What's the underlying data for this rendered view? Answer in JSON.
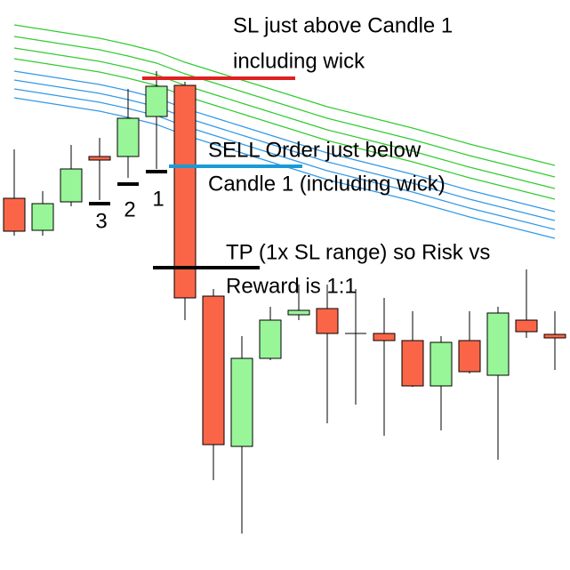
{
  "chart_data": {
    "type": "candlestick",
    "categories": [
      null,
      null,
      null,
      null,
      null,
      null,
      null,
      null,
      null,
      null,
      null,
      null,
      null,
      null,
      null,
      null,
      null,
      null,
      null,
      null
    ],
    "open": [
      418,
      382,
      414,
      465,
      465,
      510,
      545,
      308,
      139,
      238,
      287,
      294,
      266,
      266,
      258,
      207,
      258,
      219,
      281,
      265
    ],
    "high": [
      473,
      426,
      478,
      486,
      541,
      561,
      549,
      316,
      263,
      296,
      321,
      321,
      316,
      306,
      291,
      263,
      291,
      296,
      338,
      291
    ],
    "low": [
      376,
      376,
      409,
      416,
      441,
      451,
      281,
      101,
      41,
      236,
      281,
      165,
      186,
      151,
      206,
      157,
      221,
      124,
      261,
      225
    ],
    "close": [
      381,
      412,
      451,
      461,
      508,
      544,
      306,
      141,
      238,
      281,
      292,
      266,
      266,
      258,
      207,
      256,
      223,
      289,
      268,
      261
    ],
    "up_color": "#98f598",
    "down_color": "#fa6548",
    "ylim": [
      0,
      641
    ],
    "series": [
      {
        "color": "#33cc33",
        "values": [
          613,
          608,
          603,
          598,
          591,
          583,
          571,
          561,
          551,
          541,
          531,
          521,
          513,
          505,
          497,
          488,
          479,
          471,
          463,
          455
        ]
      },
      {
        "color": "#33cc33",
        "values": [
          600,
          595,
          590,
          585,
          578,
          570,
          558,
          548,
          538,
          528,
          518,
          508,
          500,
          492,
          484,
          475,
          466,
          458,
          450,
          442
        ]
      },
      {
        "color": "#33cc33",
        "values": [
          587,
          582,
          577,
          572,
          565,
          557,
          545,
          535,
          525,
          515,
          505,
          495,
          487,
          479,
          471,
          462,
          453,
          445,
          437,
          429
        ]
      },
      {
        "color": "#33cc33",
        "values": [
          575,
          570,
          565,
          560,
          553,
          545,
          533,
          523,
          513,
          503,
          493,
          483,
          475,
          467,
          459,
          450,
          441,
          433,
          425,
          417
        ]
      },
      {
        "color": "#3399e6",
        "values": [
          561,
          556,
          551,
          546,
          539,
          531,
          519,
          509,
          499,
          489,
          479,
          469,
          461,
          453,
          445,
          436,
          427,
          419,
          411,
          403
        ]
      },
      {
        "color": "#3399e6",
        "values": [
          551,
          546,
          541,
          536,
          529,
          521,
          509,
          499,
          489,
          479,
          469,
          459,
          451,
          443,
          435,
          426,
          417,
          409,
          401,
          393
        ]
      },
      {
        "color": "#3399e6",
        "values": [
          541,
          536,
          531,
          526,
          519,
          511,
          499,
          489,
          479,
          469,
          459,
          449,
          441,
          433,
          425,
          416,
          407,
          399,
          391,
          383
        ]
      },
      {
        "color": "#3399e6",
        "values": [
          531,
          526,
          521,
          516,
          509,
          501,
          489,
          479,
          469,
          459,
          449,
          439,
          431,
          423,
          415,
          406,
          397,
          389,
          381,
          373
        ]
      }
    ],
    "annotations": [
      {
        "text": [
          "SL just above Candle 1",
          "including wick"
        ],
        "level": 553,
        "color": "#e02020"
      },
      {
        "text": [
          "SELL Order just below",
          "Candle 1 (including wick)"
        ],
        "level": 454,
        "color": "#1a9ad6"
      },
      {
        "text": [
          "TP (1x SL range) so Risk vs",
          "Reward is 1:1"
        ],
        "level": 340,
        "color": "#000000"
      }
    ],
    "markers": [
      {
        "label": "3",
        "level": 412
      },
      {
        "label": "2",
        "level": 434
      },
      {
        "label": "1",
        "level": 448
      }
    ]
  }
}
